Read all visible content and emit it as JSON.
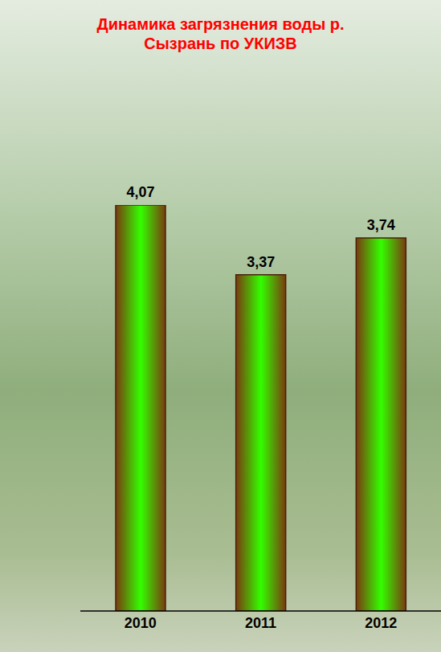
{
  "chart_data": {
    "type": "bar",
    "title": "Динамика загрязнения воды р. Сызрань по УКИЗВ",
    "categories": [
      "2010",
      "2011",
      "2012"
    ],
    "values": [
      4.07,
      3.37,
      3.74
    ],
    "value_labels": [
      "4,07",
      "3,37",
      "3,74"
    ],
    "color": "#33ff00",
    "data_labels": true,
    "tick_labels": "x",
    "grid": false
  }
}
